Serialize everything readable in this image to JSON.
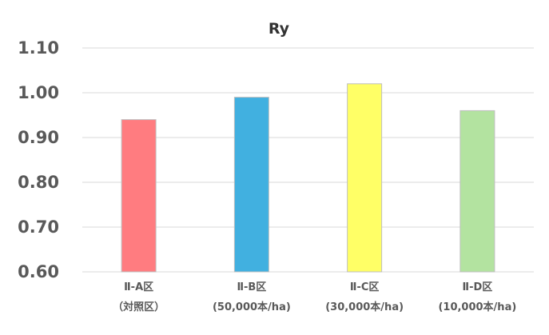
{
  "chart_data": {
    "type": "bar",
    "title": "Ry",
    "xlabel": "",
    "ylabel": "",
    "categories": [
      [
        "Ⅱ-A区",
        "（対照区）"
      ],
      [
        "Ⅱ-B区",
        "(50,000本/ha)"
      ],
      [
        "Ⅱ-C区",
        "(30,000本/ha)"
      ],
      [
        "Ⅱ-D区",
        "(10,000本/ha)"
      ]
    ],
    "values": [
      0.94,
      0.99,
      1.02,
      0.96
    ],
    "colors": [
      "#ff7c80",
      "#41b0e0",
      "#ffff66",
      "#b3e3a0"
    ],
    "ylim": [
      0.6,
      1.1
    ],
    "yticks": [
      0.6,
      0.7,
      0.8,
      0.9,
      1.0,
      1.1
    ],
    "ytick_labels": [
      "0.60",
      "0.70",
      "0.80",
      "0.90",
      "1.00",
      "1.10"
    ],
    "grid": true,
    "legend": "none",
    "gridline_color": "#d9d9d9",
    "bar_border_color": "#bfbfbf"
  }
}
